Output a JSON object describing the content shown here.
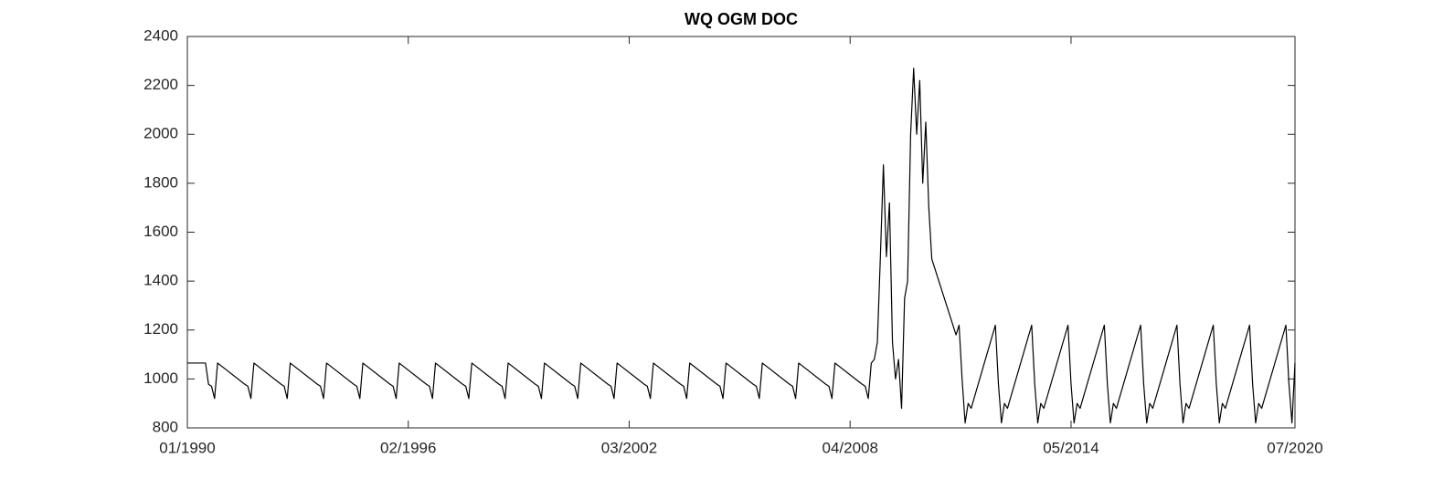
{
  "chart_data": {
    "type": "line",
    "title": "WQ OGM DOC",
    "color": "#000000",
    "x": [
      "1990-01",
      "1990-07",
      "1990-08",
      "1990-09",
      "1990-10",
      "1990-11",
      "1991-08",
      "1991-09",
      "1991-10",
      "1991-11",
      "1992-08",
      "1992-09",
      "1992-10",
      "1992-11",
      "1993-08",
      "1993-09",
      "1993-10",
      "1993-11",
      "1994-08",
      "1994-09",
      "1994-10",
      "1994-11",
      "1995-08",
      "1995-09",
      "1995-10",
      "1995-11",
      "1996-08",
      "1996-09",
      "1996-10",
      "1996-11",
      "1997-08",
      "1997-09",
      "1997-10",
      "1997-11",
      "1998-08",
      "1998-09",
      "1998-10",
      "1998-11",
      "1999-08",
      "1999-09",
      "1999-10",
      "1999-11",
      "2000-08",
      "2000-09",
      "2000-10",
      "2000-11",
      "2001-08",
      "2001-09",
      "2001-10",
      "2001-11",
      "2002-08",
      "2002-09",
      "2002-10",
      "2002-11",
      "2003-08",
      "2003-09",
      "2003-10",
      "2003-11",
      "2004-08",
      "2004-09",
      "2004-10",
      "2004-11",
      "2005-08",
      "2005-09",
      "2005-10",
      "2005-11",
      "2006-08",
      "2006-09",
      "2006-10",
      "2006-11",
      "2007-08",
      "2007-09",
      "2007-10",
      "2007-11",
      "2008-08",
      "2008-09",
      "2008-10",
      "2008-11",
      "2008-12",
      "2009-01",
      "2009-02",
      "2009-03",
      "2009-04",
      "2009-05",
      "2009-06",
      "2009-07",
      "2009-08",
      "2009-09",
      "2009-10",
      "2009-11",
      "2009-12",
      "2010-01",
      "2010-02",
      "2010-03",
      "2010-04",
      "2010-05",
      "2010-06",
      "2010-07",
      "2011-03",
      "2011-04",
      "2011-05",
      "2011-06",
      "2011-07",
      "2011-08",
      "2012-04",
      "2012-05",
      "2012-06",
      "2012-07",
      "2012-08",
      "2013-04",
      "2013-05",
      "2013-06",
      "2013-07",
      "2013-08",
      "2014-04",
      "2014-05",
      "2014-06",
      "2014-07",
      "2014-08",
      "2015-04",
      "2015-05",
      "2015-06",
      "2015-07",
      "2015-08",
      "2016-04",
      "2016-05",
      "2016-06",
      "2016-07",
      "2016-08",
      "2017-04",
      "2017-05",
      "2017-06",
      "2017-07",
      "2017-08",
      "2018-04",
      "2018-05",
      "2018-06",
      "2018-07",
      "2018-08",
      "2019-04",
      "2019-05",
      "2019-06",
      "2019-07",
      "2019-08",
      "2020-04",
      "2020-05",
      "2020-06",
      "2020-07"
    ],
    "values": [
      1065,
      1065,
      978,
      970,
      920,
      1065,
      978,
      970,
      920,
      1065,
      978,
      970,
      920,
      1065,
      978,
      970,
      920,
      1065,
      978,
      970,
      920,
      1065,
      978,
      970,
      920,
      1065,
      978,
      970,
      920,
      1065,
      978,
      970,
      920,
      1065,
      978,
      970,
      920,
      1065,
      978,
      970,
      920,
      1065,
      978,
      970,
      920,
      1065,
      978,
      970,
      920,
      1065,
      978,
      970,
      920,
      1065,
      978,
      970,
      920,
      1065,
      978,
      970,
      920,
      1065,
      978,
      970,
      920,
      1065,
      978,
      970,
      920,
      1065,
      978,
      970,
      920,
      1065,
      978,
      970,
      920,
      1065,
      1080,
      1150,
      1500,
      1875,
      1500,
      1720,
      1150,
      1000,
      1080,
      880,
      1330,
      1400,
      2000,
      2270,
      2000,
      2220,
      1800,
      2050,
      1700,
      1490,
      1180,
      1220,
      1000,
      820,
      900,
      880,
      1220,
      980,
      820,
      900,
      880,
      1220,
      980,
      820,
      900,
      880,
      1220,
      980,
      820,
      900,
      880,
      1220,
      980,
      820,
      900,
      880,
      1220,
      980,
      820,
      900,
      880,
      1220,
      980,
      820,
      900,
      880,
      1220,
      980,
      820,
      900,
      880,
      1220,
      980,
      820,
      900,
      880,
      1220,
      980,
      820,
      1065
    ],
    "xlim": [
      "1990-01",
      "2020-07"
    ],
    "xticks": [
      {
        "value": "1990-01",
        "label": "01/1990"
      },
      {
        "value": "1996-02",
        "label": "02/1996"
      },
      {
        "value": "2002-03",
        "label": "03/2002"
      },
      {
        "value": "2008-04",
        "label": "04/2008"
      },
      {
        "value": "2014-05",
        "label": "05/2014"
      },
      {
        "value": "2020-07",
        "label": "07/2020"
      }
    ],
    "ylim": [
      800,
      2400
    ],
    "yticks": [
      800,
      1000,
      1200,
      1400,
      1600,
      1800,
      2000,
      2200,
      2400
    ]
  }
}
